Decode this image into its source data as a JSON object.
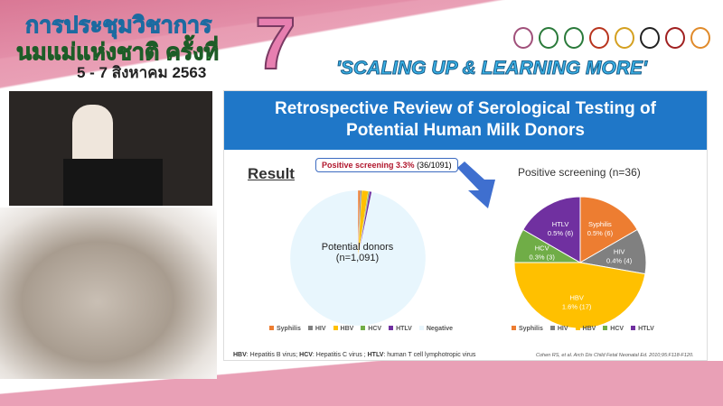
{
  "banner": {
    "title_line1": "การประชุมวิชาการ",
    "title_line2": "นมแม่แห่งชาติ ครั้งที่",
    "edition": "7",
    "dates": "5 - 7 สิงหาคม 2563",
    "slogan": "'SCALING UP & LEARNING MORE'"
  },
  "slide": {
    "title_line1": "Retrospective Review of Serological Testing of",
    "title_line2": "Potential Human Milk Donors",
    "result_label": "Result",
    "callout_bold": "Positive screening 3.3%",
    "callout_rest": "(36/1091)",
    "left_pie_label1": "Potential donors",
    "left_pie_label2": "(n=1,091)",
    "right_title": "Positive screening (n=36)",
    "footnote_parts": [
      "HBV",
      ": Hepatitis B virus; ",
      "HCV",
      ": Hepatitis C virus ; ",
      "HTLV",
      ": human T cell lymphotropic virus"
    ],
    "citation": "Cohen RS, et al. Arch Dis Child Fetal Neonatal Ed. 2010;95:F118-F120."
  },
  "chart_data": [
    {
      "type": "pie",
      "categories": [
        "Syphilis",
        "HIV",
        "HBV",
        "HCV",
        "HTLV",
        "Negative"
      ],
      "values": [
        6,
        4,
        17,
        3,
        6,
        1055
      ],
      "colors": [
        "#ed7d31",
        "#808080",
        "#ffc000",
        "#70ad47",
        "#7030a0",
        "#e8f6fd"
      ],
      "legend": "bottom"
    },
    {
      "type": "pie",
      "title": "Positive screening (n=36)",
      "categories": [
        "Syphilis",
        "HIV",
        "HBV",
        "HCV",
        "HTLV"
      ],
      "values": [
        6,
        4,
        17,
        3,
        6
      ],
      "labels": [
        "Syphilis\n0.5% (6)",
        "HIV\n0.4% (4)",
        "HBV\n1.6% (17)",
        "HCV\n0.3% (3)",
        "HTLV\n0.5% (6)"
      ],
      "colors": [
        "#ed7d31",
        "#808080",
        "#ffc000",
        "#70ad47",
        "#7030a0"
      ],
      "legend": "bottom"
    }
  ]
}
